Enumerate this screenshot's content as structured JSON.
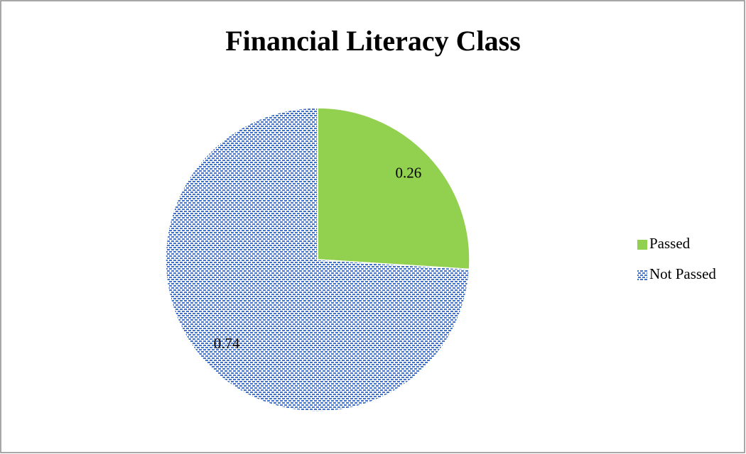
{
  "chart_data": {
    "type": "pie",
    "title": "Financial Literacy Class",
    "categories": [
      "Passed",
      "Not Passed"
    ],
    "values": [
      0.26,
      0.74
    ],
    "colors": [
      "#92d050",
      "#4472c4"
    ],
    "patterned": [
      false,
      true
    ],
    "legend": "right"
  }
}
